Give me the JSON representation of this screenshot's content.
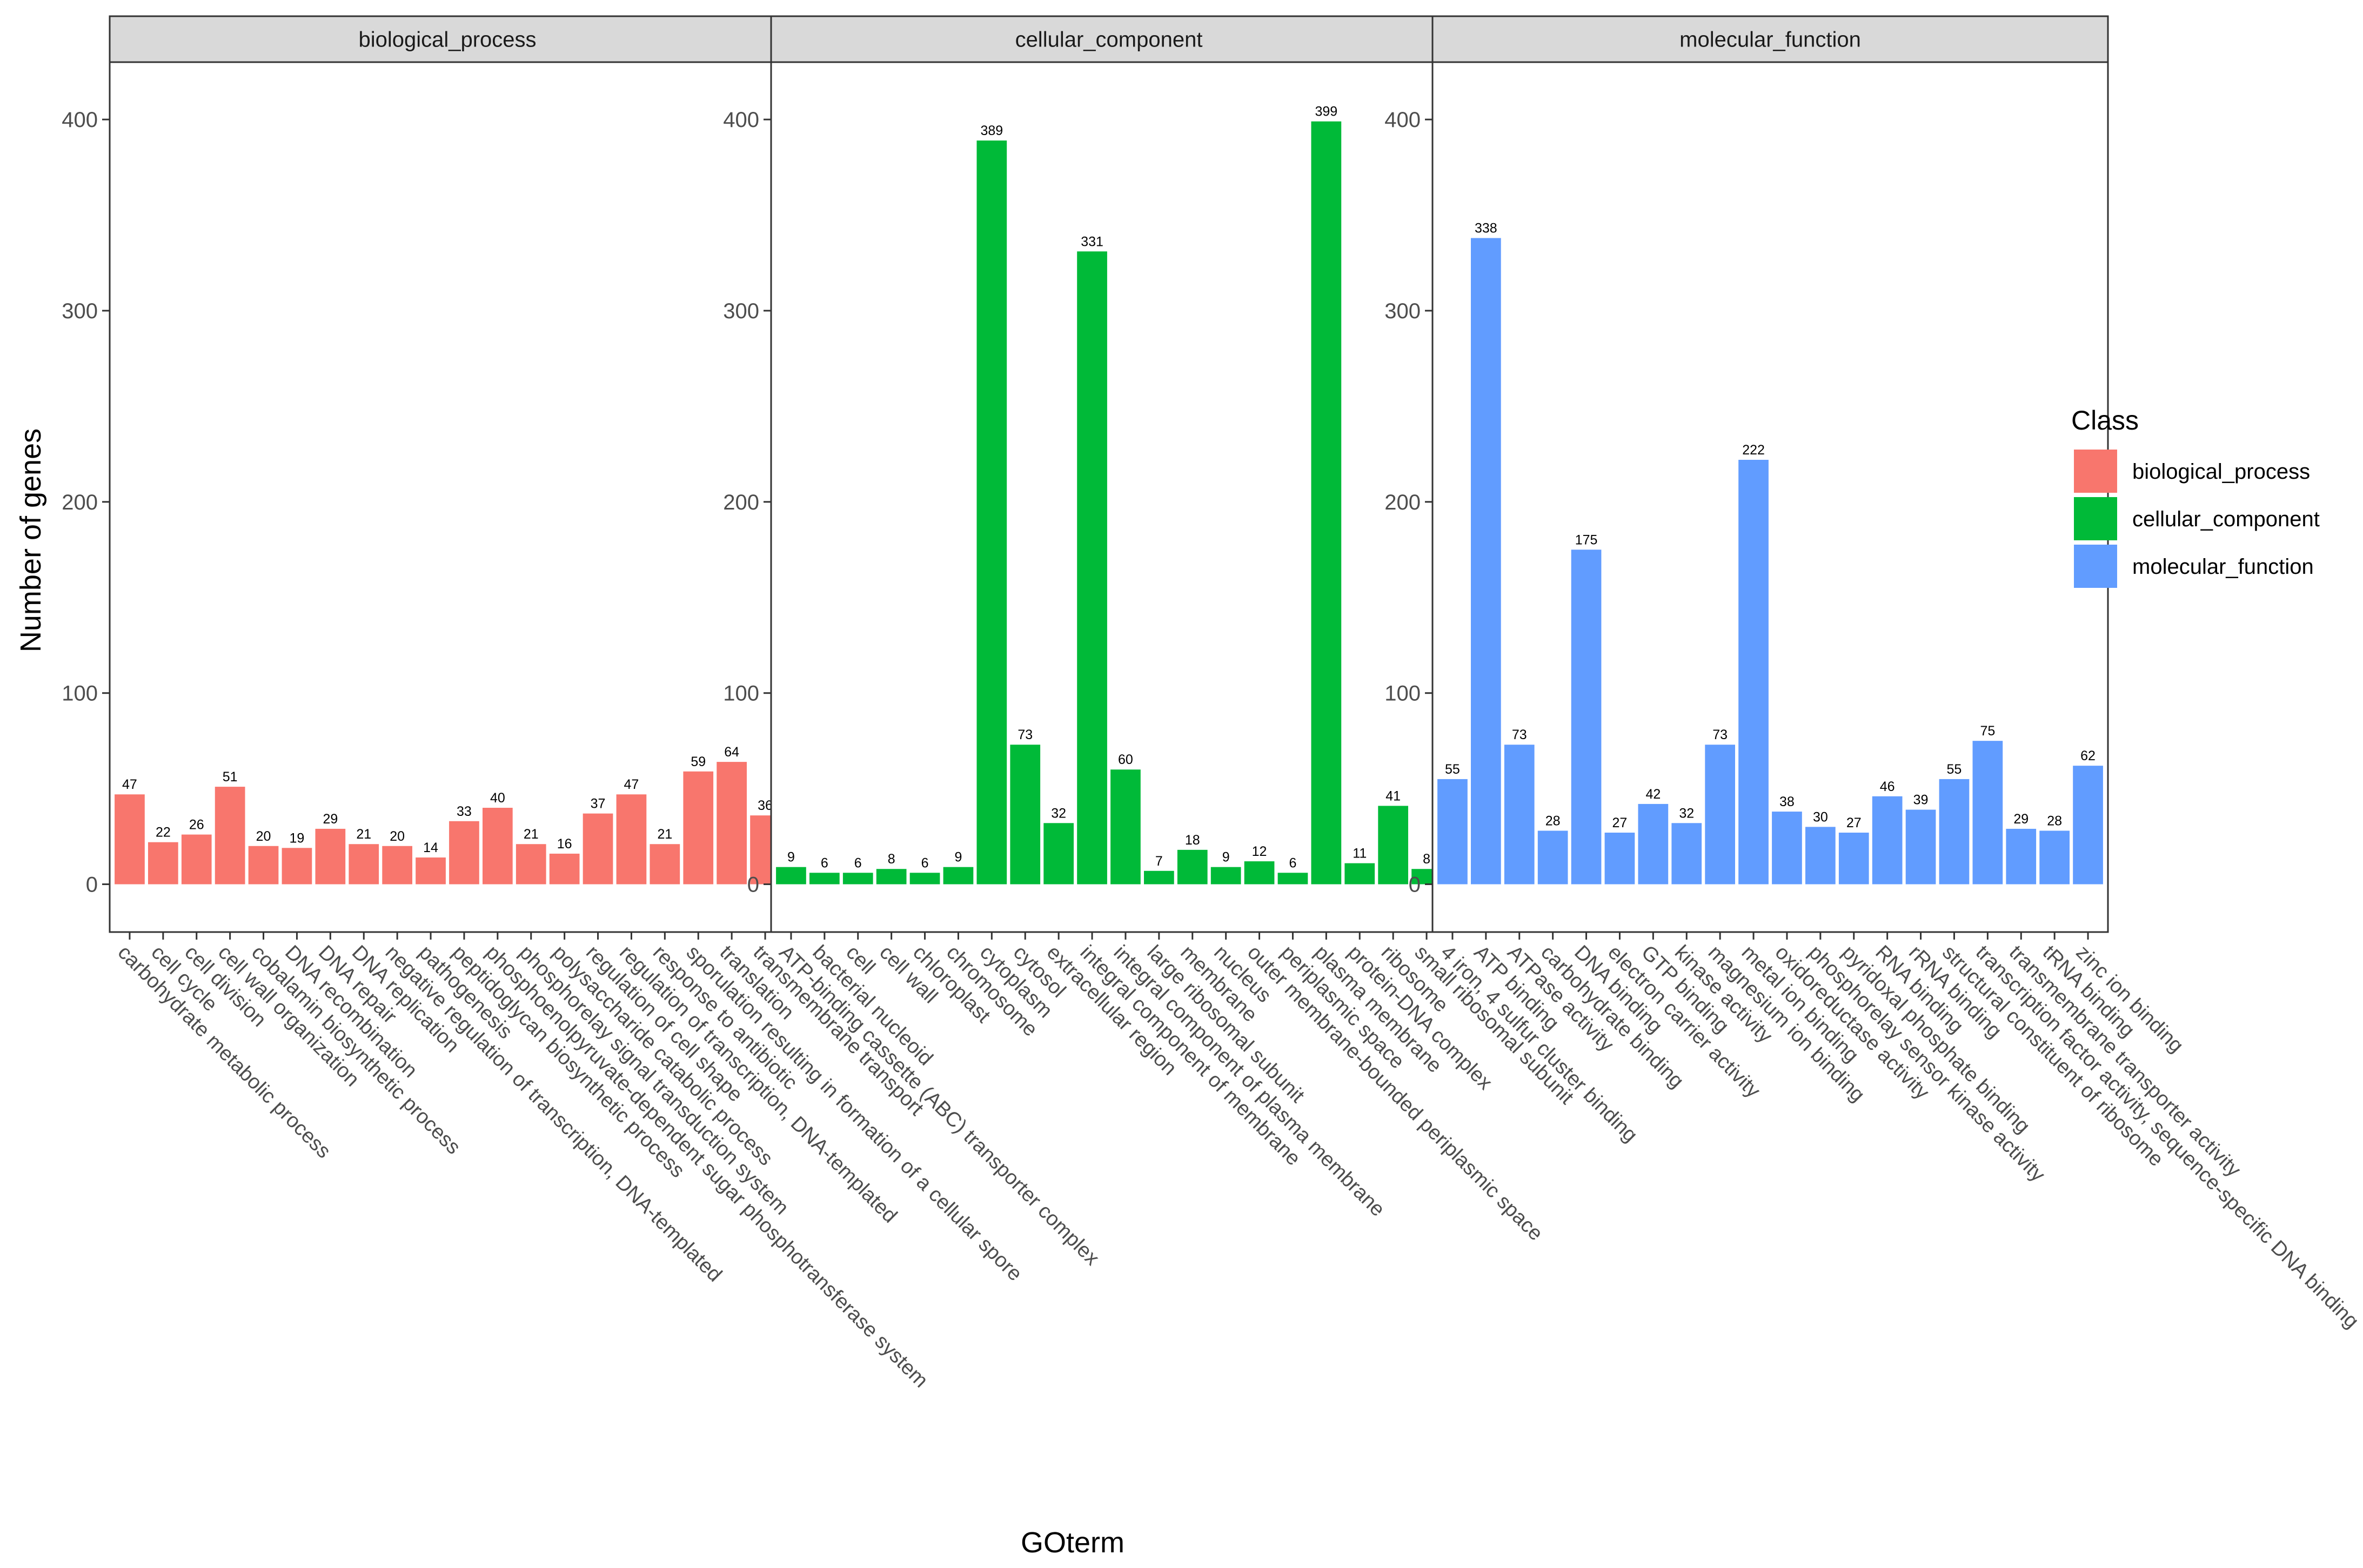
{
  "chart_data": {
    "type": "bar",
    "xlabel": "GOterm",
    "ylabel": "Number of genes",
    "ylim": [
      -25,
      430
    ],
    "yticks": [
      0,
      100,
      200,
      300,
      400
    ],
    "legend": {
      "title": "Class",
      "position": "right",
      "entries": [
        {
          "name": "biological_process",
          "color": "#F8766D"
        },
        {
          "name": "cellular_component",
          "color": "#00BA38"
        },
        {
          "name": "molecular_function",
          "color": "#619CFF"
        }
      ]
    },
    "facets": [
      {
        "name": "biological_process",
        "color": "#F8766D",
        "categories": [
          "carbohydrate metabolic process",
          "cell cycle",
          "cell division",
          "cell wall organization",
          "cobalamin biosynthetic process",
          "DNA recombination",
          "DNA repair",
          "DNA replication",
          "negative regulation of transcription, DNA-templated",
          "pathogenesis",
          "peptidoglycan biosynthetic process",
          "phosphoenolpyruvate-dependent sugar phosphotransferase system",
          "phosphorelay signal transduction system",
          "polysaccharide catabolic process",
          "regulation of cell shape",
          "regulation of transcription, DNA-templated",
          "response to antibiotic",
          "sporulation resulting in formation of a cellular spore",
          "translation",
          "transmembrane transport"
        ],
        "values": [
          47,
          22,
          26,
          51,
          20,
          19,
          29,
          21,
          20,
          14,
          33,
          40,
          21,
          16,
          37,
          47,
          21,
          59,
          64,
          36
        ]
      },
      {
        "name": "cellular_component",
        "color": "#00BA38",
        "categories": [
          "ATP-binding cassette (ABC) transporter complex",
          "bacterial nucleoid",
          "cell",
          "cell wall",
          "chloroplast",
          "chromosome",
          "cytoplasm",
          "cytosol",
          "extracellular region",
          "integral component of membrane",
          "integral component of plasma membrane",
          "large ribosomal subunit",
          "membrane",
          "nucleus",
          "outer membrane-bounded periplasmic space",
          "periplasmic space",
          "plasma membrane",
          "protein-DNA complex",
          "ribosome",
          "small ribosomal subunit"
        ],
        "values": [
          9,
          6,
          6,
          8,
          6,
          9,
          389,
          73,
          32,
          331,
          60,
          7,
          18,
          9,
          12,
          6,
          399,
          11,
          41,
          8
        ]
      },
      {
        "name": "molecular_function",
        "color": "#619CFF",
        "categories": [
          "4 iron, 4 sulfur cluster binding",
          "ATP binding",
          "ATPase activity",
          "carbohydrate binding",
          "DNA binding",
          "electron carrier activity",
          "GTP binding",
          "kinase activity",
          "magnesium ion binding",
          "metal ion binding",
          "oxidoreductase activity",
          "phosphorelay sensor kinase activity",
          "pyridoxal phosphate binding",
          "RNA binding",
          "rRNA binding",
          "structural constituent of ribosome",
          "transcription factor activity, sequence-specific DNA binding",
          "transmembrane transporter activity",
          "tRNA binding",
          "zinc ion binding"
        ],
        "values": [
          55,
          338,
          73,
          28,
          175,
          27,
          42,
          32,
          73,
          222,
          38,
          30,
          27,
          46,
          39,
          55,
          75,
          29,
          28,
          62
        ]
      }
    ]
  }
}
